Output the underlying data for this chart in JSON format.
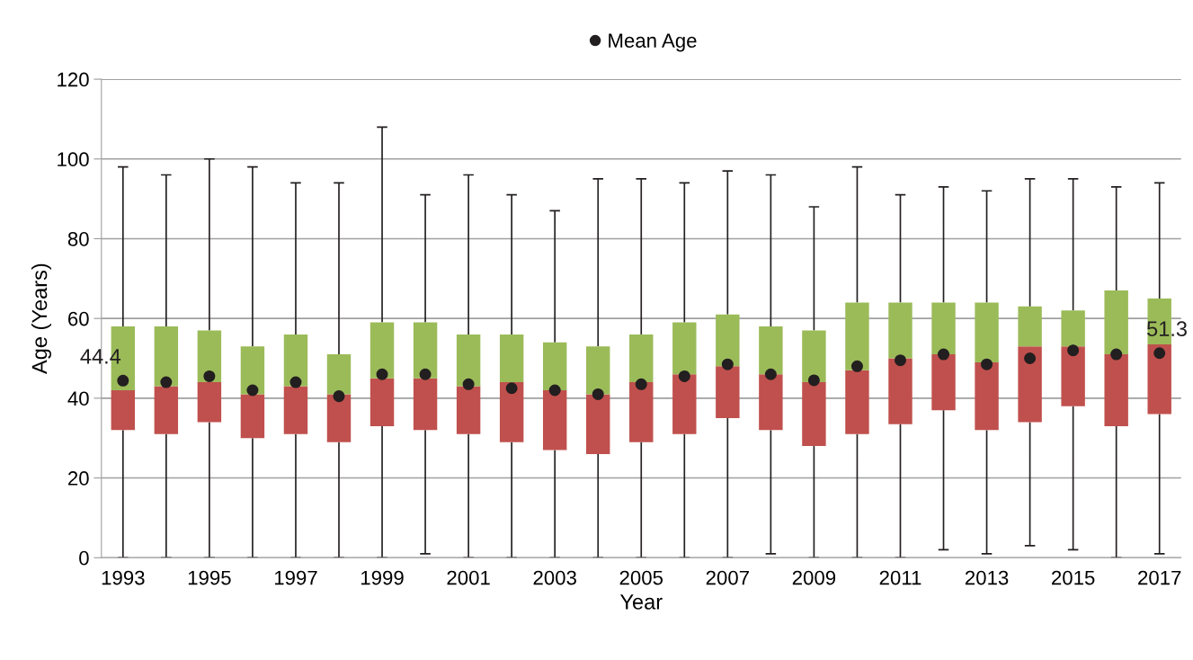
{
  "chart_data": {
    "type": "box",
    "xlabel": "Year",
    "ylabel": "Age (Years)",
    "categories": [
      "1993",
      null,
      "1995",
      null,
      "1997",
      null,
      "1999",
      null,
      "2001",
      null,
      "2003",
      null,
      "2005",
      null,
      "2007",
      null,
      "2009",
      null,
      "2011",
      null,
      "2013",
      null,
      "2015",
      null,
      "2017"
    ],
    "ylim": [
      0,
      120
    ],
    "yticks": [
      0,
      20,
      40,
      60,
      80,
      100,
      120
    ],
    "grid": "y",
    "legend": "top",
    "series": [
      {
        "colors": [
          [
            "#c0504d",
            "#9bbb59"
          ],
          [
            "#c0504d",
            "#9bbb59"
          ],
          [
            "#c0504d",
            "#9bbb59"
          ],
          [
            "#c0504d",
            "#9bbb59"
          ],
          [
            "#c0504d",
            "#9bbb59"
          ],
          [
            "#c0504d",
            "#9bbb59"
          ],
          [
            "#c0504d",
            "#9bbb59"
          ],
          [
            "#c0504d",
            "#9bbb59"
          ],
          [
            "#c0504d",
            "#9bbb59"
          ],
          [
            "#c0504d",
            "#9bbb59"
          ],
          [
            "#c0504d",
            "#9bbb59"
          ],
          [
            "#c0504d",
            "#9bbb59"
          ],
          [
            "#c0504d",
            "#9bbb59"
          ],
          [
            "#c0504d",
            "#9bbb59"
          ],
          [
            "#c0504d",
            "#9bbb59"
          ],
          [
            "#c0504d",
            "#9bbb59"
          ],
          [
            "#c0504d",
            "#9bbb59"
          ],
          [
            "#c0504d",
            "#9bbb59"
          ],
          [
            "#c0504d",
            "#9bbb59"
          ],
          [
            "#c0504d",
            "#9bbb59"
          ],
          [
            "#c0504d",
            "#9bbb59"
          ],
          [
            "#c0504d",
            "#9bbb59"
          ],
          [
            "#c0504d",
            "#9bbb59"
          ],
          [
            "#c0504d",
            "#9bbb59"
          ],
          [
            "#c0504d",
            "#9bbb59"
          ]
        ],
        "boxes": [
          {
            "low": 0,
            "q1": 32,
            "median": 42,
            "q3": 58,
            "high": 98
          },
          {
            "low": 0,
            "q1": 31,
            "median": 43,
            "q3": 58,
            "high": 96
          },
          {
            "low": 0,
            "q1": 34,
            "median": 44,
            "q3": 57,
            "high": 100
          },
          {
            "low": 0,
            "q1": 30,
            "median": 41,
            "q3": 53,
            "high": 98
          },
          {
            "low": 0,
            "q1": 31,
            "median": 43,
            "q3": 56,
            "high": 94
          },
          {
            "low": 0,
            "q1": 29,
            "median": 41,
            "q3": 51,
            "high": 94
          },
          {
            "low": 0,
            "q1": 33,
            "median": 45,
            "q3": 59,
            "high": 108
          },
          {
            "low": 1,
            "q1": 32,
            "median": 45,
            "q3": 59,
            "high": 91
          },
          {
            "low": 0,
            "q1": 31,
            "median": 43,
            "q3": 56,
            "high": 96
          },
          {
            "low": 0,
            "q1": 29,
            "median": 44,
            "q3": 56,
            "high": 91
          },
          {
            "low": 0,
            "q1": 27,
            "median": 42,
            "q3": 54,
            "high": 87
          },
          {
            "low": 0,
            "q1": 26,
            "median": 41,
            "q3": 53,
            "high": 95
          },
          {
            "low": 0,
            "q1": 29,
            "median": 44,
            "q3": 56,
            "high": 95
          },
          {
            "low": 0,
            "q1": 31,
            "median": 46,
            "q3": 59,
            "high": 94
          },
          {
            "low": 0,
            "q1": 35,
            "median": 48,
            "q3": 61,
            "high": 97
          },
          {
            "low": 1,
            "q1": 32,
            "median": 46,
            "q3": 58,
            "high": 96
          },
          {
            "low": 0,
            "q1": 28,
            "median": 44,
            "q3": 57,
            "high": 88
          },
          {
            "low": 0,
            "q1": 31,
            "median": 47,
            "q3": 64,
            "high": 98
          },
          {
            "low": 0,
            "q1": 33.5,
            "median": 50,
            "q3": 64,
            "high": 91
          },
          {
            "low": 2,
            "q1": 37,
            "median": 51,
            "q3": 64,
            "high": 93
          },
          {
            "low": 1,
            "q1": 32,
            "median": 49,
            "q3": 64,
            "high": 92
          },
          {
            "low": 3,
            "q1": 34,
            "median": 53,
            "q3": 63,
            "high": 95
          },
          {
            "low": 2,
            "q1": 38,
            "median": 53,
            "q3": 62,
            "high": 95
          },
          {
            "low": 0,
            "q1": 33,
            "median": 51,
            "q3": 67,
            "high": 93
          },
          {
            "low": 1,
            "q1": 36,
            "median": 53.5,
            "q3": 65,
            "high": 94
          }
        ]
      },
      {
        "type": "scatter",
        "name": "Mean Age",
        "color": "#231f20",
        "marker": "circle",
        "values": [
          44.4,
          44,
          45.5,
          42,
          44,
          40.5,
          46,
          46,
          43.5,
          42.5,
          42,
          41,
          43.5,
          45.5,
          48.5,
          46,
          44.5,
          48,
          49.5,
          51,
          48.5,
          50,
          52,
          51,
          51.3
        ],
        "value_labels": [
          "44.4",
          null,
          null,
          null,
          null,
          null,
          null,
          null,
          null,
          null,
          null,
          null,
          null,
          null,
          null,
          null,
          null,
          null,
          null,
          null,
          null,
          null,
          null,
          null,
          "51.3"
        ]
      }
    ]
  }
}
